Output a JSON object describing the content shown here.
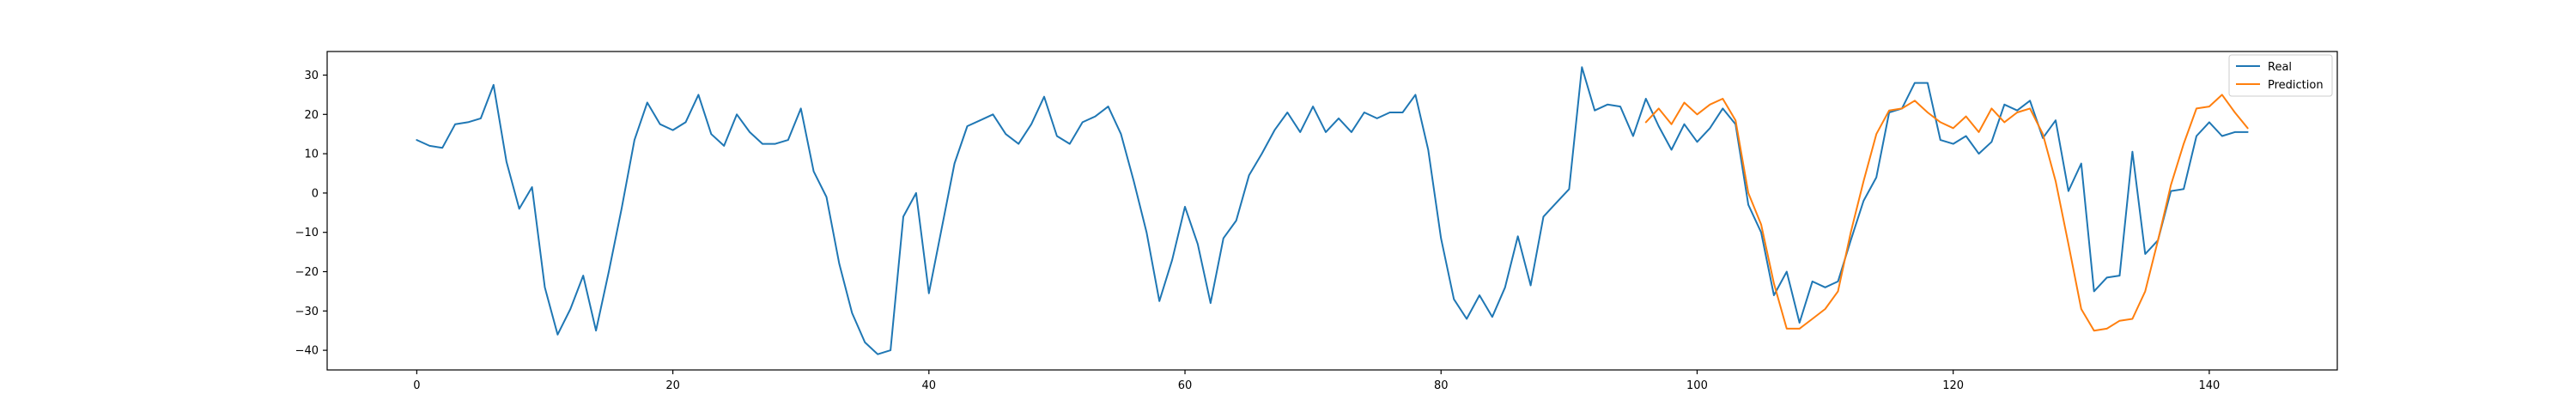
{
  "chart_data": {
    "type": "line",
    "title": "",
    "xlabel": "",
    "ylabel": "",
    "xlim": [
      -7,
      150
    ],
    "ylim": [
      -45,
      36
    ],
    "xticks": [
      0,
      20,
      40,
      60,
      80,
      100,
      120,
      140
    ],
    "yticks": [
      -40,
      -30,
      -20,
      -10,
      0,
      10,
      20,
      30
    ],
    "grid": false,
    "legend": "top-right",
    "series": [
      {
        "name": "Real",
        "color": "#1f77b4",
        "x_start": 0,
        "values": [
          13.5,
          12,
          11.5,
          17.5,
          18,
          19,
          27.5,
          8,
          -4,
          1.5,
          -24,
          -36,
          -29.5,
          -21,
          -35,
          -20,
          -4,
          13.5,
          23,
          17.5,
          16,
          18,
          25,
          15,
          12,
          20,
          15.5,
          12.5,
          12.5,
          13.5,
          21.5,
          5.5,
          -1,
          -18,
          -30.5,
          -38,
          -41,
          -40,
          -6,
          0,
          -25.5,
          -9,
          7.5,
          17,
          18.5,
          20,
          15,
          12.5,
          17.5,
          24.5,
          14.5,
          12.5,
          18,
          19.5,
          22,
          15,
          3,
          -10,
          -27.5,
          -17,
          -3.5,
          -13,
          -28,
          -11.5,
          -7,
          4.5,
          10,
          16,
          20.5,
          15.5,
          22,
          15.5,
          19,
          15.5,
          20.5,
          19,
          20.5,
          20.5,
          25,
          11,
          -11.5,
          -27,
          -32,
          -26,
          -31.5,
          -24,
          -11,
          -23.5,
          -6,
          -2.5,
          1,
          32,
          21,
          22.5,
          22,
          14.5,
          24,
          17,
          11,
          17.5,
          13,
          16.5,
          21.5,
          17.5,
          -3,
          -10,
          -26,
          -20,
          -33,
          -22.5,
          -24,
          -22.5,
          -12,
          -2,
          4,
          20.5,
          21.5,
          28,
          28,
          13.5,
          12.5,
          14.5,
          10,
          13,
          22.5,
          21,
          23.5,
          14,
          18.5,
          0.5,
          7.5,
          -25,
          -21.5,
          -21,
          10.5,
          -15.5,
          -12,
          0.5,
          1,
          14.5,
          18,
          14.5,
          15.5,
          15.5
        ]
      },
      {
        "name": "Prediction",
        "color": "#ff7f0e",
        "x_start": 96,
        "values": [
          18,
          21.5,
          17.5,
          23,
          20,
          22.5,
          24,
          18.5,
          0,
          -8,
          -23,
          -34.5,
          -34.5,
          -32,
          -29.5,
          -25,
          -10,
          3,
          15,
          21,
          21.5,
          23.5,
          20.5,
          18,
          16.5,
          19.5,
          15.5,
          21.5,
          18,
          20.5,
          21.5,
          15,
          3,
          -13,
          -29.5,
          -35,
          -34.5,
          -32.5,
          -32,
          -25,
          -12,
          2,
          12.5,
          21.5,
          22,
          25,
          20.5,
          16.5
        ]
      }
    ]
  }
}
